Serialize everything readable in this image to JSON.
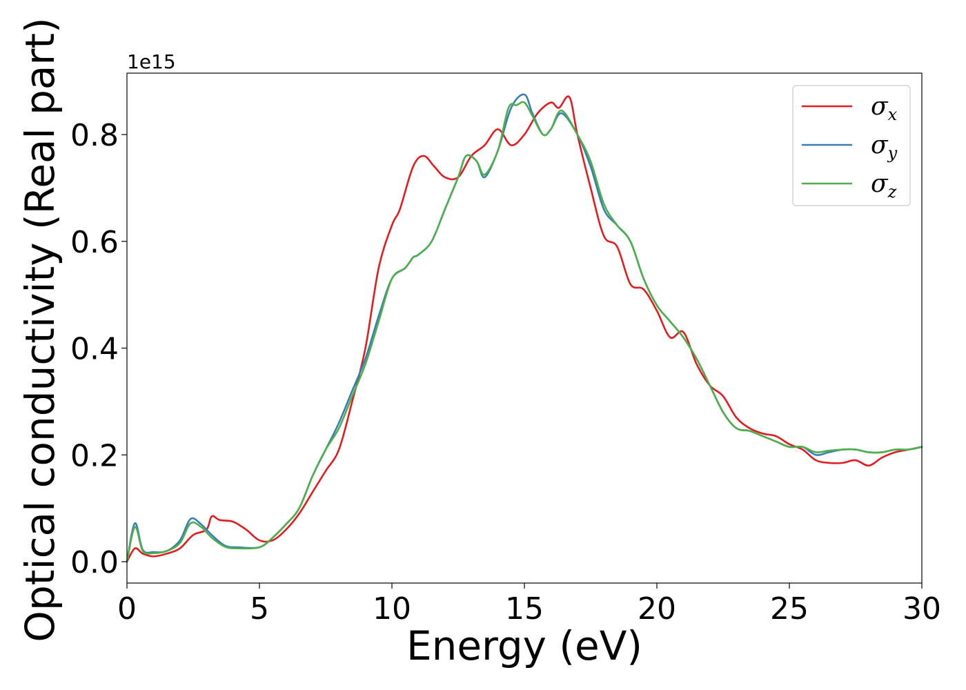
{
  "chart_data": {
    "type": "line",
    "title": "",
    "xlabel": "Energy (eV)",
    "ylabel": "Optical conductivity (Real part)",
    "y_offset_label": "1e15",
    "xlim": [
      0,
      30
    ],
    "ylim": [
      -0.04,
      0.915
    ],
    "xticks": [
      0,
      5,
      10,
      15,
      20,
      25,
      30
    ],
    "xtick_labels": [
      "0",
      "5",
      "10",
      "15",
      "20",
      "25",
      "30"
    ],
    "yticks": [
      0.0,
      0.2,
      0.4,
      0.6,
      0.8
    ],
    "ytick_labels": [
      "0.0",
      "0.2",
      "0.4",
      "0.6",
      "0.8"
    ],
    "grid": false,
    "legend_position": "top-right",
    "series": [
      {
        "name": "σx",
        "legend_symbol": "σ",
        "legend_sub": "x",
        "color": "#e41a1c",
        "x": [
          0,
          0.3,
          0.6,
          1.0,
          1.5,
          2.0,
          2.5,
          3.0,
          3.2,
          3.5,
          4.0,
          4.5,
          5.0,
          5.5,
          6.0,
          6.5,
          7.0,
          7.5,
          8.0,
          8.5,
          9.0,
          9.5,
          10.0,
          10.3,
          10.8,
          11.2,
          11.6,
          12.0,
          12.5,
          13.0,
          13.5,
          14.0,
          14.5,
          15.0,
          15.5,
          16.0,
          16.3,
          16.7,
          17.0,
          17.5,
          18.0,
          18.5,
          19.0,
          19.5,
          20.0,
          20.5,
          21.0,
          21.5,
          22.0,
          22.5,
          23.0,
          23.5,
          24.0,
          24.5,
          25.0,
          25.5,
          26.0,
          26.5,
          27.0,
          27.5,
          28.0,
          28.5,
          29.0,
          29.5,
          30.0
        ],
        "y": [
          0.0,
          0.025,
          0.015,
          0.01,
          0.015,
          0.025,
          0.05,
          0.06,
          0.085,
          0.078,
          0.075,
          0.06,
          0.04,
          0.04,
          0.06,
          0.09,
          0.13,
          0.17,
          0.21,
          0.3,
          0.4,
          0.55,
          0.63,
          0.66,
          0.74,
          0.76,
          0.74,
          0.72,
          0.72,
          0.76,
          0.78,
          0.81,
          0.78,
          0.8,
          0.84,
          0.86,
          0.85,
          0.87,
          0.8,
          0.7,
          0.61,
          0.59,
          0.52,
          0.51,
          0.47,
          0.42,
          0.43,
          0.37,
          0.33,
          0.31,
          0.27,
          0.25,
          0.24,
          0.235,
          0.22,
          0.21,
          0.19,
          0.185,
          0.185,
          0.19,
          0.18,
          0.195,
          0.205,
          0.21,
          0.215
        ]
      },
      {
        "name": "σy",
        "legend_symbol": "σ",
        "legend_sub": "y",
        "color": "#377eb8",
        "x": [
          0,
          0.3,
          0.6,
          1.0,
          1.5,
          2.0,
          2.4,
          2.8,
          3.2,
          3.7,
          4.2,
          5.0,
          5.5,
          6.0,
          6.5,
          7.0,
          7.5,
          8.0,
          8.5,
          9.0,
          9.5,
          10.0,
          10.5,
          10.8,
          11.0,
          11.5,
          12.0,
          12.5,
          12.8,
          13.2,
          13.5,
          14.0,
          14.5,
          15.0,
          15.3,
          15.7,
          16.0,
          16.4,
          17.0,
          17.5,
          18.0,
          18.5,
          19.0,
          19.5,
          20.0,
          20.5,
          21.0,
          21.5,
          22.0,
          22.5,
          23.0,
          23.5,
          24.0,
          24.5,
          25.0,
          25.5,
          26.0,
          26.5,
          27.0,
          27.5,
          28.0,
          28.5,
          29.0,
          29.5,
          30.0
        ],
        "y": [
          0.0,
          0.072,
          0.022,
          0.018,
          0.02,
          0.04,
          0.08,
          0.07,
          0.05,
          0.03,
          0.027,
          0.027,
          0.045,
          0.07,
          0.1,
          0.16,
          0.21,
          0.26,
          0.32,
          0.38,
          0.46,
          0.53,
          0.55,
          0.57,
          0.575,
          0.6,
          0.66,
          0.72,
          0.76,
          0.75,
          0.72,
          0.77,
          0.85,
          0.875,
          0.84,
          0.8,
          0.81,
          0.84,
          0.8,
          0.74,
          0.66,
          0.63,
          0.6,
          0.53,
          0.48,
          0.45,
          0.42,
          0.38,
          0.33,
          0.28,
          0.25,
          0.245,
          0.235,
          0.225,
          0.215,
          0.215,
          0.2,
          0.205,
          0.21,
          0.21,
          0.205,
          0.205,
          0.21,
          0.21,
          0.215
        ]
      },
      {
        "name": "σz",
        "legend_symbol": "σ",
        "legend_sub": "z",
        "color": "#4daf4a",
        "x": [
          0,
          0.3,
          0.6,
          1.0,
          1.5,
          2.0,
          2.4,
          2.8,
          3.2,
          3.7,
          4.2,
          5.0,
          5.5,
          6.0,
          6.5,
          7.0,
          7.5,
          8.0,
          8.5,
          9.0,
          9.5,
          10.0,
          10.5,
          10.8,
          11.0,
          11.5,
          12.0,
          12.5,
          12.8,
          13.2,
          13.5,
          14.0,
          14.4,
          14.7,
          15.0,
          15.3,
          15.7,
          16.0,
          16.4,
          17.0,
          17.5,
          18.0,
          18.5,
          19.0,
          19.5,
          20.0,
          20.5,
          21.0,
          21.5,
          22.0,
          22.5,
          23.0,
          23.5,
          24.0,
          24.5,
          25.0,
          25.5,
          26.0,
          26.5,
          27.0,
          27.5,
          28.0,
          28.5,
          29.0,
          29.5,
          30.0
        ],
        "y": [
          0.0,
          0.065,
          0.02,
          0.016,
          0.02,
          0.035,
          0.072,
          0.065,
          0.045,
          0.028,
          0.025,
          0.027,
          0.045,
          0.07,
          0.1,
          0.16,
          0.21,
          0.25,
          0.31,
          0.37,
          0.45,
          0.53,
          0.55,
          0.57,
          0.575,
          0.6,
          0.66,
          0.72,
          0.76,
          0.75,
          0.725,
          0.77,
          0.85,
          0.855,
          0.86,
          0.835,
          0.8,
          0.81,
          0.845,
          0.8,
          0.75,
          0.67,
          0.63,
          0.6,
          0.53,
          0.48,
          0.45,
          0.42,
          0.38,
          0.33,
          0.28,
          0.25,
          0.245,
          0.235,
          0.225,
          0.215,
          0.215,
          0.205,
          0.208,
          0.21,
          0.21,
          0.205,
          0.205,
          0.21,
          0.21,
          0.215
        ]
      }
    ]
  }
}
